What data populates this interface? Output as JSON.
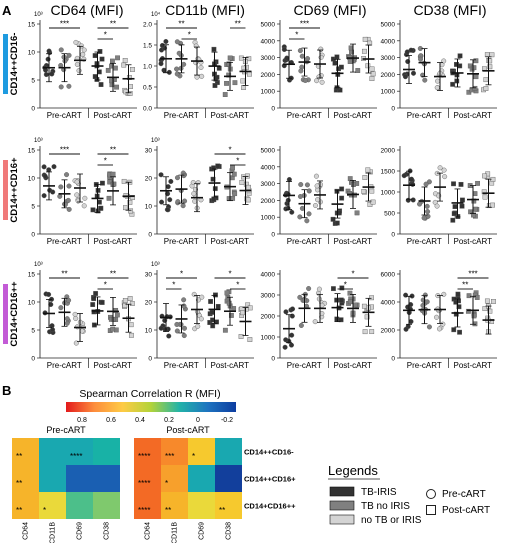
{
  "panel_a_label": "A",
  "panel_b_label": "B",
  "columns": [
    "CD64 (MFI)",
    "CD11b (MFI)",
    "CD69 (MFI)",
    "CD38 (MFI)"
  ],
  "rows": [
    {
      "label": "CD14++CD16-",
      "color": "#1e9be0"
    },
    {
      "label": "CD14++CD16+",
      "color": "#f07a7a"
    },
    {
      "label": "CD14+CD16++",
      "color": "#c35bd6"
    }
  ],
  "group_labels": [
    "Pre-cART",
    "Post-cART"
  ],
  "axes": [
    [
      {
        "exp": "10³",
        "ticks": [
          "15",
          "10",
          "5",
          "0"
        ]
      },
      {
        "exp": "10⁴",
        "ticks": [
          "2.0",
          "1.5",
          "1.0",
          "0.5",
          "0.0"
        ]
      },
      {
        "exp": "",
        "ticks": [
          "5000",
          "4000",
          "3000",
          "2000",
          "1000",
          "0"
        ]
      },
      {
        "exp": "",
        "ticks": [
          "5000",
          "4000",
          "3000",
          "2000",
          "1000",
          "0"
        ]
      }
    ],
    [
      {
        "exp": "10³",
        "ticks": [
          "15",
          "10",
          "5",
          "0"
        ]
      },
      {
        "exp": "10³",
        "ticks": [
          "30",
          "20",
          "10",
          "0"
        ]
      },
      {
        "exp": "",
        "ticks": [
          "5000",
          "4000",
          "3000",
          "2000",
          "1000",
          "0"
        ]
      },
      {
        "exp": "",
        "ticks": [
          "2000",
          "1500",
          "1000",
          "500",
          "0"
        ]
      }
    ],
    [
      {
        "exp": "10³",
        "ticks": [
          "15",
          "10",
          "5",
          "0"
        ]
      },
      {
        "exp": "10³",
        "ticks": [
          "30",
          "20",
          "10",
          "0"
        ]
      },
      {
        "exp": "",
        "ticks": [
          "4000",
          "3000",
          "2000",
          "1000",
          "0"
        ]
      },
      {
        "exp": "",
        "ticks": [
          "6000",
          "4000",
          "2000",
          "0"
        ]
      }
    ]
  ],
  "significance": [
    [
      [
        {
          "a": 0,
          "b": 2,
          "lvl": 1,
          "label": "***"
        },
        {
          "a": 3,
          "b": 5,
          "lvl": 1,
          "label": "**"
        },
        {
          "a": 3,
          "b": 4,
          "lvl": 0,
          "label": "*"
        }
      ],
      [
        {
          "a": 0,
          "b": 2,
          "lvl": 1,
          "label": "**"
        },
        {
          "a": 1,
          "b": 2,
          "lvl": 0,
          "label": "*"
        },
        {
          "a": 4,
          "b": 5,
          "lvl": 1,
          "label": "**"
        }
      ],
      [
        {
          "a": 0,
          "b": 2,
          "lvl": 1,
          "label": "***"
        },
        {
          "a": 0,
          "b": 1,
          "lvl": 0,
          "label": "*"
        }
      ],
      []
    ],
    [
      [
        {
          "a": 0,
          "b": 2,
          "lvl": 1,
          "label": "***"
        },
        {
          "a": 3,
          "b": 5,
          "lvl": 1,
          "label": "**"
        },
        {
          "a": 3,
          "b": 4,
          "lvl": 0,
          "label": "*"
        }
      ],
      [
        {
          "a": 3,
          "b": 5,
          "lvl": 1,
          "label": "*"
        },
        {
          "a": 4,
          "b": 5,
          "lvl": 0,
          "label": "*"
        }
      ],
      [],
      []
    ],
    [
      [
        {
          "a": 0,
          "b": 2,
          "lvl": 1,
          "label": "**"
        },
        {
          "a": 3,
          "b": 5,
          "lvl": 1,
          "label": "**"
        },
        {
          "a": 3,
          "b": 4,
          "lvl": 0,
          "label": "*"
        }
      ],
      [
        {
          "a": 0,
          "b": 2,
          "lvl": 1,
          "label": "*"
        },
        {
          "a": 0,
          "b": 1,
          "lvl": 0,
          "label": "*"
        },
        {
          "a": 3,
          "b": 5,
          "lvl": 1,
          "label": "*"
        },
        {
          "a": 4,
          "b": 5,
          "lvl": 0,
          "label": "*"
        }
      ],
      [
        {
          "a": 3,
          "b": 5,
          "lvl": 1,
          "label": "*"
        },
        {
          "a": 3,
          "b": 4,
          "lvl": 0,
          "label": "*"
        }
      ],
      [
        {
          "a": 3,
          "b": 5,
          "lvl": 1,
          "label": "***"
        },
        {
          "a": 3,
          "b": 4,
          "lvl": 0,
          "label": "**"
        }
      ]
    ]
  ],
  "heatmap": {
    "title": "Spearman Correlation R (MFI)",
    "scale_ticks": [
      "0.8",
      "0.6",
      "0.4",
      "0.2",
      "0",
      "-0.2"
    ],
    "scale_colors": [
      "#e31a1c",
      "#fd8d3c",
      "#fecb45",
      "#b2d33a",
      "#22b3a8",
      "#1e74c0",
      "#0d3da0"
    ],
    "groups": [
      "Pre-cART",
      "Post-cART"
    ],
    "row_labels": [
      "CD14++CD16-",
      "CD14++CD16+",
      "CD14+CD16++"
    ],
    "col_labels": [
      "CD64",
      "CD11B",
      "CD69",
      "CD38"
    ],
    "pre": {
      "colors": [
        [
          "#f6b42a",
          "#19a8b0",
          "#19a8b0",
          "#18b2a6"
        ],
        [
          "#f6b42a",
          "#19a8b0",
          "#1a5fb2",
          "#1a5fb2"
        ],
        [
          "#f6b42a",
          "#ead93a",
          "#4cbf8a",
          "#7fc96d"
        ]
      ],
      "labels": [
        [
          "**",
          "",
          "****",
          ""
        ],
        [
          "**",
          "",
          "",
          ""
        ],
        [
          "**",
          "*",
          "",
          ""
        ]
      ]
    },
    "post": {
      "colors": [
        [
          "#f36a25",
          "#f7892b",
          "#f6c92e",
          "#19a8b0"
        ],
        [
          "#f36a25",
          "#f7a02c",
          "#19a8b0",
          "#123f9c"
        ],
        [
          "#f36a25",
          "#f6b42a",
          "#ead93a",
          "#f6c92e"
        ]
      ],
      "labels": [
        [
          "****",
          "***",
          "*",
          ""
        ],
        [
          "****",
          "*",
          "",
          ""
        ],
        [
          "****",
          "**",
          "",
          "**"
        ]
      ]
    }
  },
  "legends": {
    "title": "Legends",
    "groups": [
      {
        "label": "TB-IRIS",
        "color": "#333333"
      },
      {
        "label": "TB no IRIS",
        "color": "#808080"
      },
      {
        "label": "no TB or IRIS",
        "color": "#d4d4d4"
      }
    ],
    "timepoints": [
      {
        "label": "Pre-cART",
        "shape": "circle"
      },
      {
        "label": "Post-cART",
        "shape": "square"
      }
    ]
  }
}
